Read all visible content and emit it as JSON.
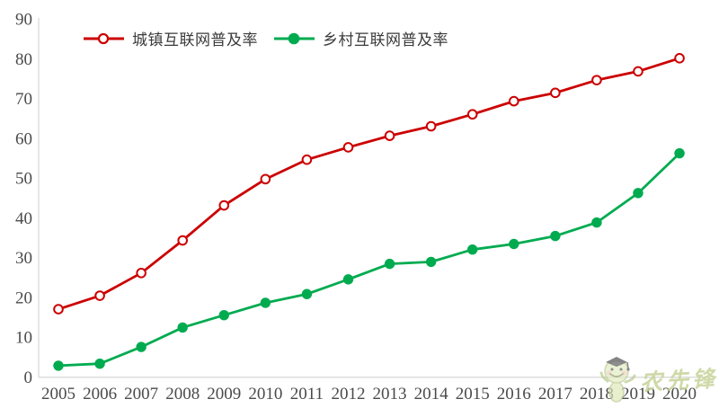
{
  "chart_data": {
    "type": "line",
    "title": "",
    "xlabel": "",
    "ylabel": "",
    "x": [
      "2005",
      "2006",
      "2007",
      "2008",
      "2009",
      "2010",
      "2011",
      "2012",
      "2013",
      "2014",
      "2015",
      "2016",
      "2017",
      "2018",
      "2019",
      "2020"
    ],
    "ylim": [
      0,
      90
    ],
    "ytick_step": 10,
    "grid": false,
    "legend_position": "top-inside-left",
    "axis_color": "#D8D8D8",
    "tick_label_color": "#4A4A4A",
    "series": [
      {
        "name": "城镇互联网普及率",
        "color": "#CC0000",
        "marker": "open-circle",
        "values": [
          17.0,
          20.4,
          26.1,
          34.3,
          43.1,
          49.7,
          54.6,
          57.7,
          60.6,
          63.0,
          66.0,
          69.3,
          71.4,
          74.6,
          76.8,
          80.1
        ]
      },
      {
        "name": "乡村互联网普及率",
        "color": "#00AB50",
        "marker": "filled-circle",
        "values": [
          2.8,
          3.3,
          7.5,
          12.4,
          15.5,
          18.6,
          20.8,
          24.5,
          28.4,
          28.9,
          32.0,
          33.4,
          35.4,
          38.8,
          46.2,
          56.2
        ]
      }
    ]
  },
  "watermark": {
    "text": "农先锋",
    "color": "#C7D39A"
  }
}
